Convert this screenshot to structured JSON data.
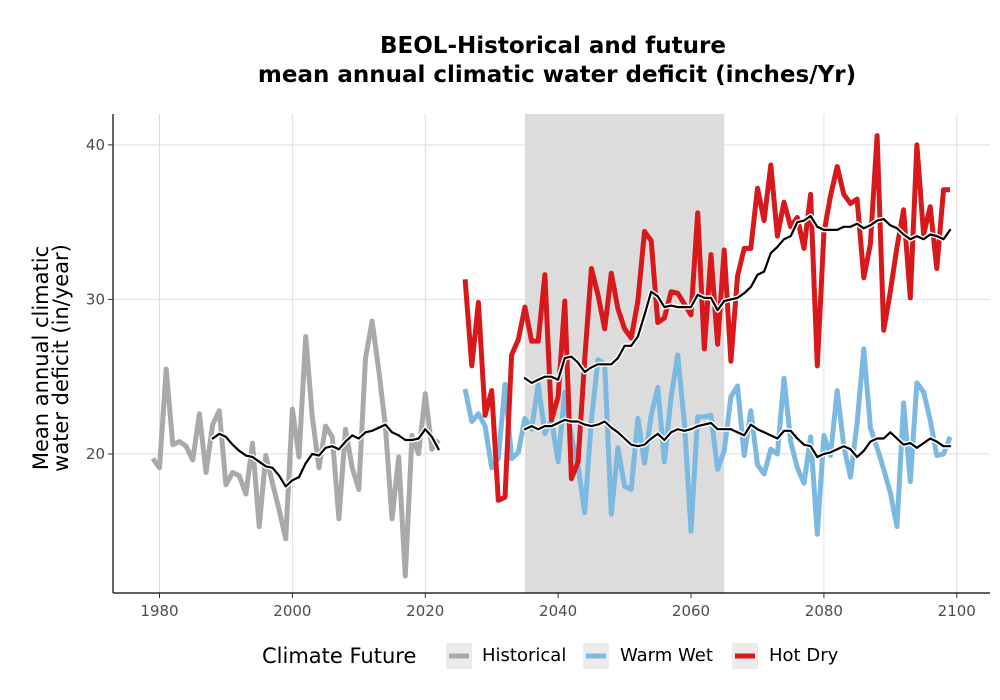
{
  "chart_data": {
    "type": "line",
    "title_line1": "BEOL-Historical and future",
    "title_line2": "mean annual climatic water deficit (inches/Yr)",
    "ylabel_line1": "Mean annual climatic",
    "ylabel_line2": "water deficit (in/year)",
    "xlabel": "",
    "xlim": [
      1973,
      2105
    ],
    "ylim": [
      11,
      42
    ],
    "xticks": [
      1980,
      2000,
      2020,
      2040,
      2060,
      2080,
      2100
    ],
    "yticks": [
      20,
      30,
      40
    ],
    "grid": true,
    "shaded_period": [
      2035,
      2065
    ],
    "legend": {
      "title": "Climate Future",
      "position": "bottom",
      "entries": [
        {
          "label": "Historical",
          "color": "#a9a9a9"
        },
        {
          "label": "Warm Wet",
          "color": "#7cb9e0"
        },
        {
          "label": "Hot Dry",
          "color": "#d7191c"
        }
      ]
    },
    "series": [
      {
        "name": "Historical",
        "color": "#a9a9a9",
        "x": [
          1979,
          1980,
          1981,
          1982,
          1983,
          1984,
          1985,
          1986,
          1987,
          1988,
          1989,
          1990,
          1991,
          1992,
          1993,
          1994,
          1995,
          1996,
          1997,
          1998,
          1999,
          2000,
          2001,
          2002,
          2003,
          2004,
          2005,
          2006,
          2007,
          2008,
          2009,
          2010,
          2011,
          2012,
          2013,
          2014,
          2015,
          2016,
          2017,
          2018,
          2019,
          2020,
          2021,
          2022
        ],
        "values": [
          19.7,
          19.1,
          25.5,
          20.6,
          20.8,
          20.5,
          19.6,
          22.6,
          18.8,
          21.9,
          22.8,
          18.0,
          18.8,
          18.6,
          17.4,
          20.7,
          15.3,
          19.9,
          18.1,
          16.4,
          14.5,
          22.9,
          19.8,
          27.6,
          22.4,
          19.1,
          21.8,
          21.1,
          15.8,
          21.6,
          19.1,
          17.7,
          26.2,
          28.6,
          25.4,
          21.8,
          15.8,
          19.8,
          12.1,
          21.2,
          20.0,
          23.9,
          20.3,
          20.9
        ]
      },
      {
        "name": "Historical smoothed",
        "color": "#000000",
        "x": [
          1988,
          1989,
          1990,
          1991,
          1992,
          1993,
          1994,
          1995,
          1996,
          1997,
          1998,
          1999,
          2000,
          2001,
          2002,
          2003,
          2004,
          2005,
          2006,
          2007,
          2008,
          2009,
          2010,
          2011,
          2012,
          2013,
          2014,
          2015,
          2016,
          2017,
          2018,
          2019,
          2020,
          2021,
          2022
        ],
        "values": [
          21.0,
          21.3,
          21.1,
          20.6,
          20.2,
          19.9,
          19.8,
          19.5,
          19.2,
          19.1,
          18.6,
          17.9,
          18.3,
          18.5,
          19.4,
          20.0,
          19.9,
          20.4,
          20.5,
          20.3,
          20.8,
          21.2,
          21.0,
          21.4,
          21.5,
          21.7,
          21.9,
          21.4,
          21.2,
          20.9,
          20.9,
          21.0,
          21.6,
          21.1,
          20.3
        ]
      },
      {
        "name": "Warm Wet",
        "color": "#7cb9e0",
        "x": [
          2026,
          2027,
          2028,
          2029,
          2030,
          2031,
          2032,
          2033,
          2034,
          2035,
          2036,
          2037,
          2038,
          2039,
          2040,
          2041,
          2042,
          2043,
          2044,
          2045,
          2046,
          2047,
          2048,
          2049,
          2050,
          2051,
          2052,
          2053,
          2054,
          2055,
          2056,
          2057,
          2058,
          2059,
          2060,
          2061,
          2062,
          2063,
          2064,
          2065,
          2066,
          2067,
          2068,
          2069,
          2070,
          2071,
          2072,
          2073,
          2074,
          2075,
          2076,
          2077,
          2078,
          2079,
          2080,
          2081,
          2082,
          2083,
          2084,
          2085,
          2086,
          2087,
          2088,
          2089,
          2090,
          2091,
          2092,
          2093,
          2094,
          2095,
          2096,
          2097,
          2098,
          2099
        ],
        "values": [
          24.2,
          22.1,
          22.6,
          21.8,
          19.1,
          19.7,
          24.5,
          19.7,
          20.1,
          22.3,
          21.6,
          24.5,
          21.3,
          22.2,
          19.5,
          24.0,
          21.1,
          19.2,
          16.2,
          22.2,
          26.1,
          25.8,
          16.1,
          20.4,
          17.9,
          17.7,
          22.3,
          19.4,
          22.5,
          24.3,
          19.5,
          23.7,
          26.4,
          22.0,
          15.0,
          22.4,
          22.4,
          22.5,
          19.0,
          20.2,
          23.7,
          24.4,
          19.9,
          22.8,
          19.3,
          18.7,
          20.3,
          20.0,
          24.9,
          20.8,
          19.1,
          18.1,
          21.1,
          14.8,
          21.2,
          19.9,
          24.1,
          20.5,
          18.5,
          22.0,
          26.8,
          21.7,
          20.4,
          19.0,
          17.5,
          15.3,
          23.3,
          18.2,
          24.6,
          24.0,
          22.2,
          19.9,
          20.0,
          21.1
        ]
      },
      {
        "name": "Hot Dry",
        "color": "#d7191c",
        "x": [
          2026,
          2027,
          2028,
          2029,
          2030,
          2031,
          2032,
          2033,
          2034,
          2035,
          2036,
          2037,
          2038,
          2039,
          2040,
          2041,
          2042,
          2043,
          2044,
          2045,
          2046,
          2047,
          2048,
          2049,
          2050,
          2051,
          2052,
          2053,
          2054,
          2055,
          2056,
          2057,
          2058,
          2059,
          2060,
          2061,
          2062,
          2063,
          2064,
          2065,
          2066,
          2067,
          2068,
          2069,
          2070,
          2071,
          2072,
          2073,
          2074,
          2075,
          2076,
          2077,
          2078,
          2079,
          2080,
          2081,
          2082,
          2083,
          2084,
          2085,
          2086,
          2087,
          2088,
          2089,
          2090,
          2091,
          2092,
          2093,
          2094,
          2095,
          2096,
          2097,
          2098,
          2099
        ],
        "values": [
          31.3,
          25.7,
          29.8,
          22.5,
          24.1,
          17.0,
          17.2,
          26.4,
          27.4,
          29.5,
          27.3,
          27.3,
          31.6,
          22.2,
          23.7,
          29.9,
          18.4,
          19.5,
          26.1,
          32.0,
          30.3,
          28.1,
          31.7,
          29.4,
          28.1,
          27.5,
          29.9,
          34.4,
          33.8,
          28.5,
          28.8,
          30.5,
          30.4,
          29.7,
          29.0,
          35.6,
          26.8,
          32.9,
          27.1,
          33.2,
          26.0,
          31.5,
          33.3,
          33.3,
          37.2,
          35.1,
          38.7,
          34.1,
          36.3,
          34.7,
          35.3,
          33.3,
          36.8,
          25.7,
          34.3,
          36.7,
          38.6,
          36.8,
          36.2,
          36.5,
          31.4,
          33.6,
          40.6,
          28.0,
          30.5,
          33.4,
          35.8,
          30.1,
          40.0,
          34.2,
          36.0,
          32.0,
          37.1,
          37.1
        ]
      },
      {
        "name": "Future smoothed",
        "color": "#000000",
        "x": [
          2035,
          2036,
          2037,
          2038,
          2039,
          2040,
          2041,
          2042,
          2043,
          2044,
          2045,
          2046,
          2047,
          2048,
          2049,
          2050,
          2051,
          2052,
          2053,
          2054,
          2055,
          2056,
          2057,
          2058,
          2059,
          2060,
          2061,
          2062,
          2063,
          2064,
          2065,
          2066,
          2067,
          2068,
          2069,
          2070,
          2071,
          2072,
          2073,
          2074,
          2075,
          2076,
          2077,
          2078,
          2079,
          2080,
          2081,
          2082,
          2083,
          2084,
          2085,
          2086,
          2087,
          2088,
          2089,
          2090,
          2091,
          2092,
          2093,
          2094,
          2095,
          2096,
          2097,
          2098,
          2099
        ],
        "values": [
          21.6,
          21.8,
          21.6,
          21.8,
          21.8,
          22.0,
          22.2,
          22.1,
          22.1,
          21.9,
          21.8,
          21.9,
          22.1,
          21.7,
          21.4,
          21.0,
          20.6,
          20.5,
          20.6,
          21.0,
          21.3,
          20.9,
          21.4,
          21.6,
          21.5,
          21.6,
          21.8,
          21.9,
          22.0,
          21.6,
          21.6,
          21.6,
          21.4,
          21.2,
          21.9,
          21.6,
          21.4,
          21.2,
          21.0,
          21.5,
          21.5,
          21.0,
          20.6,
          20.5,
          19.8,
          20.0,
          20.1,
          20.3,
          20.5,
          20.3,
          19.8,
          20.2,
          20.8,
          21.0,
          21.0,
          21.4,
          21.0,
          20.6,
          20.7,
          20.4,
          20.7,
          21.0,
          20.8,
          20.5,
          20.5
        ]
      },
      {
        "name": "Hot Dry smoothed",
        "color": "#000000",
        "x": [
          2035,
          2036,
          2037,
          2038,
          2039,
          2040,
          2041,
          2042,
          2043,
          2044,
          2045,
          2046,
          2047,
          2048,
          2049,
          2050,
          2051,
          2052,
          2053,
          2054,
          2055,
          2056,
          2057,
          2058,
          2059,
          2060,
          2061,
          2062,
          2063,
          2064,
          2065,
          2066,
          2067,
          2068,
          2069,
          2070,
          2071,
          2072,
          2073,
          2074,
          2075,
          2076,
          2077,
          2078,
          2079,
          2080,
          2081,
          2082,
          2083,
          2084,
          2085,
          2086,
          2087,
          2088,
          2089,
          2090,
          2091,
          2092,
          2093,
          2094,
          2095,
          2096,
          2097,
          2098,
          2099
        ],
        "values": [
          24.9,
          24.6,
          24.8,
          25.0,
          25.0,
          24.8,
          26.2,
          26.3,
          25.9,
          25.3,
          25.6,
          25.8,
          25.8,
          25.8,
          26.2,
          27.0,
          27.0,
          27.6,
          29.0,
          30.5,
          30.2,
          29.5,
          29.6,
          29.5,
          29.5,
          29.5,
          30.3,
          30.1,
          30.1,
          29.3,
          29.9,
          30.0,
          30.1,
          30.4,
          30.8,
          31.6,
          31.8,
          33.0,
          33.4,
          33.9,
          34.1,
          35.0,
          35.1,
          35.4,
          34.7,
          34.5,
          34.5,
          34.5,
          34.7,
          34.7,
          34.9,
          34.6,
          34.8,
          35.1,
          35.2,
          34.8,
          34.6,
          34.2,
          33.9,
          34.1,
          33.9,
          34.2,
          34.1,
          33.9,
          34.5
        ]
      }
    ]
  }
}
